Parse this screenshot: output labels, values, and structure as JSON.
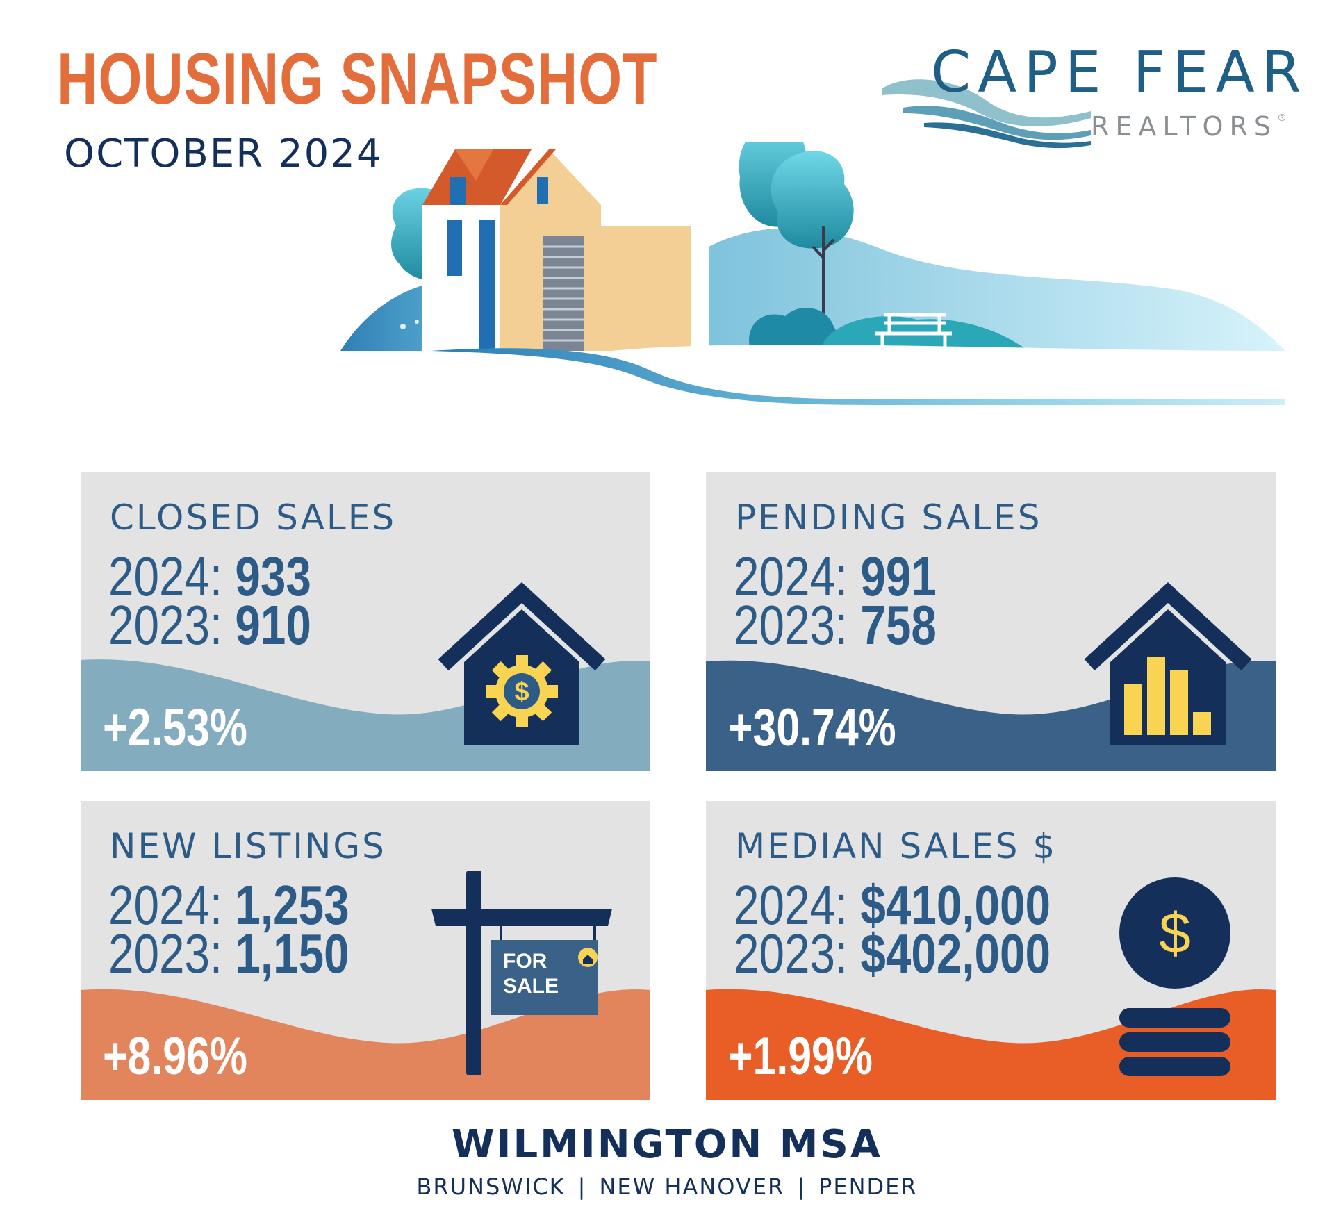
{
  "header": {
    "title": "HOUSING SNAPSHOT",
    "subtitle": "OCTOBER 2024"
  },
  "logo": {
    "name": "CAPE FEAR",
    "subname": "REALTORS",
    "registered": "®"
  },
  "colors": {
    "accent_orange": "#e46d3c",
    "navy": "#14305a",
    "card_blue_text": "#2d5b87",
    "closed_wave": "#83adbf",
    "pending_wave": "#3a6288",
    "listings_wave": "#e2855d",
    "median_wave": "#e95d26",
    "icon_yellow": "#f9d453"
  },
  "cards": [
    {
      "title": "CLOSED SALES",
      "line1_label": "2024:",
      "line1_value": "933",
      "line2_label": "2023:",
      "line2_value": "910",
      "change": "+2.53%",
      "icon": "house-gear-dollar-icon"
    },
    {
      "title": "PENDING SALES",
      "line1_label": "2024:",
      "line1_value": "991",
      "line2_label": "2023:",
      "line2_value": "758",
      "change": "+30.74%",
      "icon": "house-bar-chart-icon"
    },
    {
      "title": "NEW LISTINGS",
      "line1_label": "2024:",
      "line1_value": "1,253",
      "line2_label": "2023:",
      "line2_value": "1,150",
      "change": "+8.96%",
      "icon": "for-sale-sign-icon",
      "sign_line1": "FOR",
      "sign_line2": "SALE"
    },
    {
      "title": "MEDIAN SALES $",
      "line1_label": "2024:",
      "line1_value": "$410,000",
      "line2_label": "2023:",
      "line2_value": "$402,000",
      "change": "+1.99%",
      "icon": "coin-stack-icon",
      "coin_symbol": "$"
    }
  ],
  "footer": {
    "title": "WILMINGTON MSA",
    "counties": [
      "BRUNSWICK",
      "NEW HANOVER",
      "PENDER"
    ],
    "separator": "|"
  }
}
